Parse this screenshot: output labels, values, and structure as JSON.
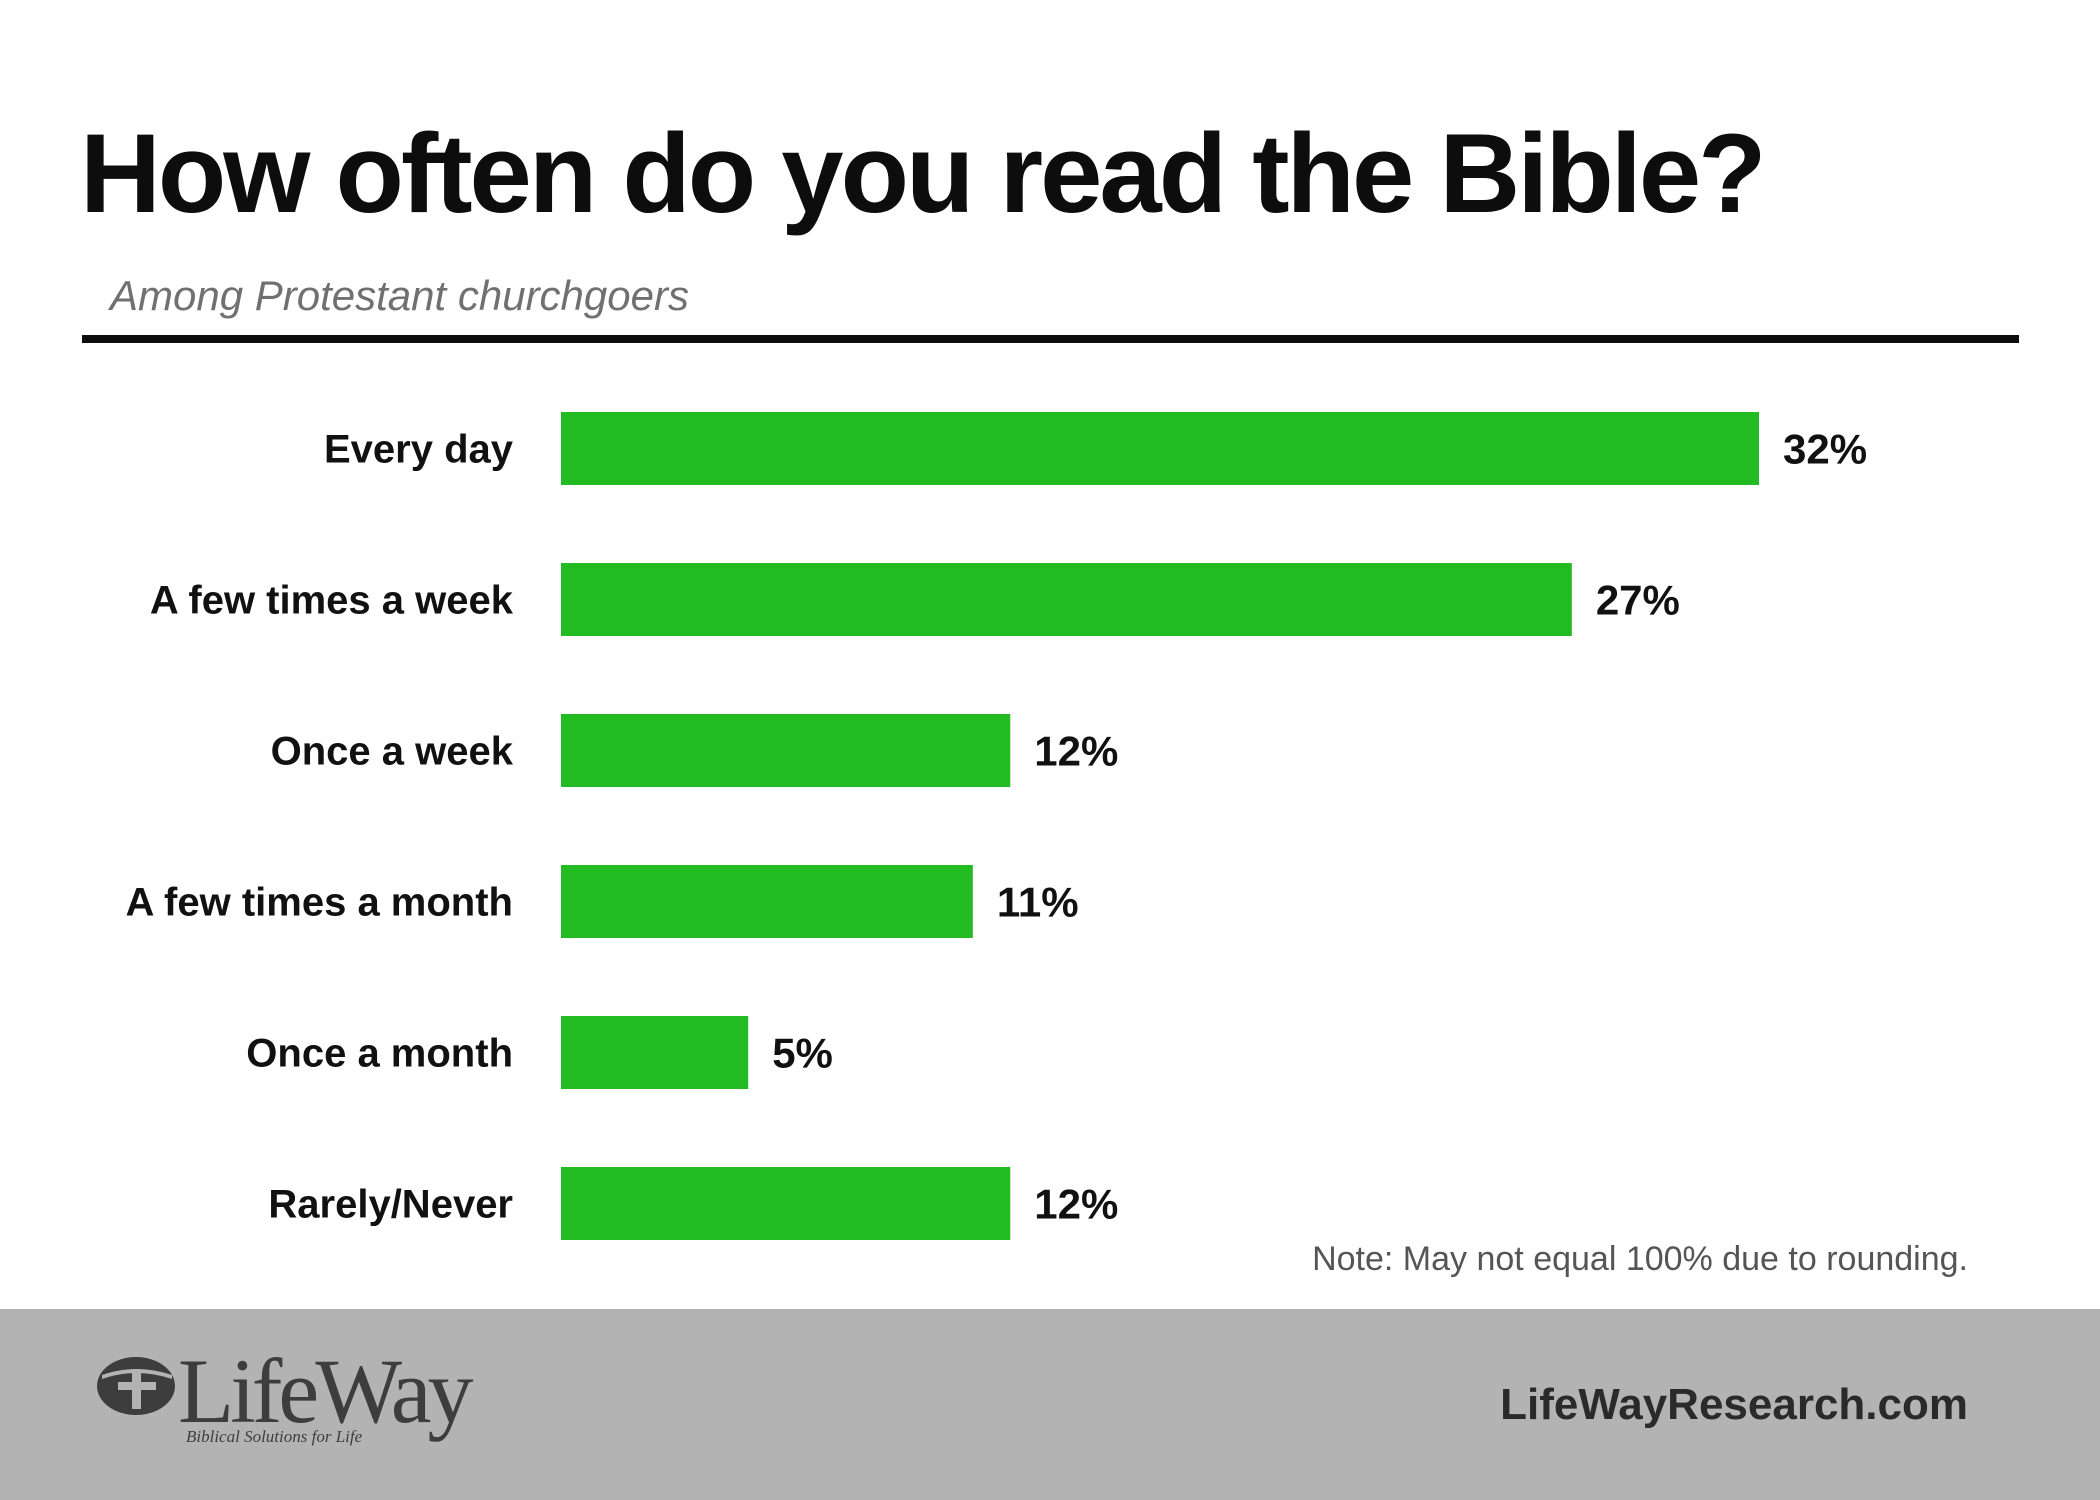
{
  "header": {
    "title": "How often do you read the Bible?",
    "subtitle": "Among Protestant churchgoers"
  },
  "note": "Note: May not equal 100% due to rounding.",
  "footer": {
    "logo_word": "LifeWay",
    "logo_tagline": "Biblical Solutions for Life",
    "site": "LifeWayResearch.com"
  },
  "colors": {
    "bar": "#22bb22",
    "footer_bg": "#b3b3b3",
    "text": "#111111"
  },
  "chart_data": {
    "type": "bar",
    "orientation": "horizontal",
    "title": "How often do you read the Bible?",
    "subtitle": "Among Protestant churchgoers",
    "categories": [
      "Every day",
      "A few times a week",
      "Once a week",
      "A few times a month",
      "Once a month",
      "Rarely/Never"
    ],
    "values": [
      32,
      27,
      12,
      11,
      5,
      12
    ],
    "value_labels": [
      "32%",
      "27%",
      "12%",
      "11%",
      "5%",
      "12%"
    ],
    "unit": "%",
    "xlim": [
      0,
      32
    ],
    "grid": false,
    "legend": "none"
  }
}
